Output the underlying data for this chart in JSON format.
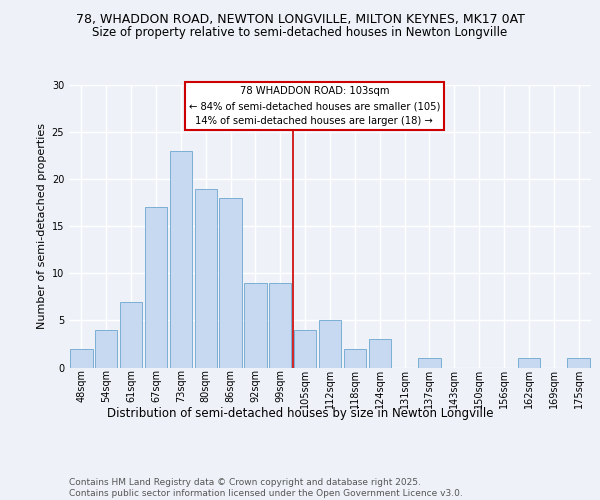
{
  "title_line1": "78, WHADDON ROAD, NEWTON LONGVILLE, MILTON KEYNES, MK17 0AT",
  "title_line2": "Size of property relative to semi-detached houses in Newton Longville",
  "xlabel": "Distribution of semi-detached houses by size in Newton Longville",
  "ylabel": "Number of semi-detached properties",
  "footer": "Contains HM Land Registry data © Crown copyright and database right 2025.\nContains public sector information licensed under the Open Government Licence v3.0.",
  "categories": [
    "48sqm",
    "54sqm",
    "61sqm",
    "67sqm",
    "73sqm",
    "80sqm",
    "86sqm",
    "92sqm",
    "99sqm",
    "105sqm",
    "112sqm",
    "118sqm",
    "124sqm",
    "131sqm",
    "137sqm",
    "143sqm",
    "150sqm",
    "156sqm",
    "162sqm",
    "169sqm",
    "175sqm"
  ],
  "values": [
    2,
    4,
    7,
    17,
    23,
    19,
    18,
    9,
    9,
    4,
    5,
    2,
    3,
    0,
    1,
    0,
    0,
    0,
    1,
    0,
    1
  ],
  "bar_color": "#c6d9f0",
  "bar_edge_color": "#7bafd4",
  "vline_x": 8.5,
  "vline_color": "#cc0000",
  "annotation_title": "78 WHADDON ROAD: 103sqm",
  "annotation_line2": "← 84% of semi-detached houses are smaller (105)",
  "annotation_line3": "14% of semi-detached houses are larger (18) →",
  "annotation_box_color": "#ffffff",
  "annotation_box_edge": "#cc0000",
  "ylim": [
    0,
    30
  ],
  "yticks": [
    0,
    5,
    10,
    15,
    20,
    25,
    30
  ],
  "bg_color": "#eef2f8",
  "plot_bg_color": "#eef2f8",
  "grid_color": "#ffffff",
  "title_fontsize": 9,
  "subtitle_fontsize": 8.5,
  "axis_label_fontsize": 8.5,
  "tick_fontsize": 7,
  "footer_fontsize": 6.5,
  "ylabel_fontsize": 8
}
